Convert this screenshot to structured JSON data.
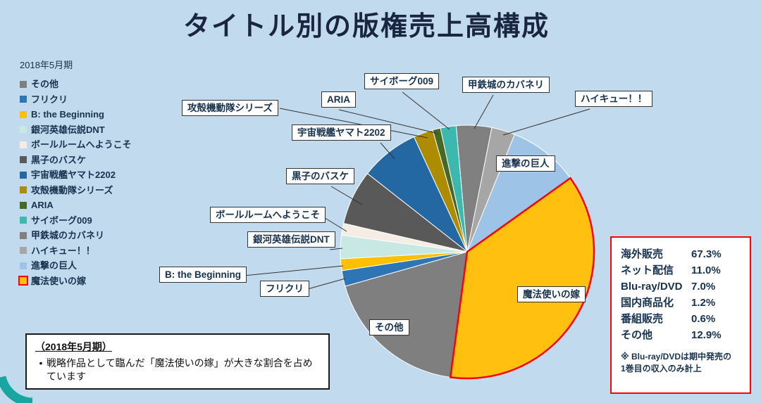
{
  "title": "タイトル別の版権売上高構成",
  "colors": {
    "background": "#C2DAEE",
    "accent_red": "#FF0000",
    "text_navy": "#17324E"
  },
  "legend": {
    "period_label": "2018年5月期",
    "items": [
      {
        "label": "その他",
        "color": "#7F7F7F"
      },
      {
        "label": "フリクリ",
        "color": "#2E75B6"
      },
      {
        "label": "B: the Beginning",
        "color": "#FFC000"
      },
      {
        "label": "銀河英雄伝説DNT",
        "color": "#C8E8E4"
      },
      {
        "label": "ボールルームへようこそ",
        "color": "#F5EDE4"
      },
      {
        "label": "黒子のバスケ",
        "color": "#595959"
      },
      {
        "label": "宇宙戦艦ヤマト2202",
        "color": "#2368A2"
      },
      {
        "label": "攻殻機動隊シリーズ",
        "color": "#AE8C00"
      },
      {
        "label": "ARIA",
        "color": "#456A28"
      },
      {
        "label": "サイボーグ009",
        "color": "#3CB8AE"
      },
      {
        "label": "甲鉄城のカバネリ",
        "color": "#808080"
      },
      {
        "label": "ハイキュー！！",
        "color": "#A6A6A6"
      },
      {
        "label": "進撃の巨人",
        "color": "#9DC3E6"
      },
      {
        "label": "魔法使いの嫁",
        "color": "#FFC000",
        "border": "#FF0000"
      }
    ]
  },
  "chart_data": {
    "type": "pie",
    "title": "タイトル別の版権売上高構成",
    "unit": "percent (estimated from slice angles)",
    "direction": "clockwise",
    "start_angle_deg": -5,
    "series": [
      {
        "name": "甲鉄城のカバネリ",
        "value": 4.5,
        "color": "#808080"
      },
      {
        "name": "ハイキュー！！",
        "value": 3,
        "color": "#A6A6A6"
      },
      {
        "name": "進撃の巨人",
        "value": 9,
        "color": "#9DC3E6"
      },
      {
        "name": "魔法使いの嫁",
        "value": 37,
        "color": "#FFC010",
        "stroke": "#FF0000",
        "stroke_width": 2.5
      },
      {
        "name": "その他",
        "value": 18.5,
        "color": "#7F7F7F"
      },
      {
        "name": "フリクリ",
        "value": 2,
        "color": "#2E75B6"
      },
      {
        "name": "B: the Beginning",
        "value": 1.5,
        "color": "#FFC000"
      },
      {
        "name": "銀河英雄伝説DNT",
        "value": 3,
        "color": "#C8E8E4"
      },
      {
        "name": "ボールルームへようこそ",
        "value": 1.5,
        "color": "#F5EDE4"
      },
      {
        "name": "黒子のバスケ",
        "value": 7,
        "color": "#595959"
      },
      {
        "name": "宇宙戦艦ヤマト2202",
        "value": 7.5,
        "color": "#2368A2"
      },
      {
        "name": "攻殻機動隊シリーズ",
        "value": 2.5,
        "color": "#AE8C00"
      },
      {
        "name": "ARIA",
        "value": 1,
        "color": "#456A28"
      },
      {
        "name": "サイボーグ009",
        "value": 2,
        "color": "#3CB8AE"
      }
    ]
  },
  "breakdown_box": {
    "rows": [
      {
        "label": "海外販売",
        "value": "67.3%"
      },
      {
        "label": "ネット配信",
        "value": "11.0%"
      },
      {
        "label": "Blu-ray/DVD",
        "value": "7.0%"
      },
      {
        "label": "国内商品化",
        "value": "1.2%"
      },
      {
        "label": "番組販売",
        "value": "0.6%"
      },
      {
        "label": "その他",
        "value": "12.9%"
      }
    ],
    "note_lines": [
      "※ Blu-ray/DVDは期中発売の",
      "1巻目の収入のみ計上"
    ]
  },
  "comment_box": {
    "heading": "（2018年5月期）",
    "bullet_marker": "•",
    "bullet": "戦略作品として臨んだ「魔法使いの嫁」が大きな割合を占めています"
  }
}
